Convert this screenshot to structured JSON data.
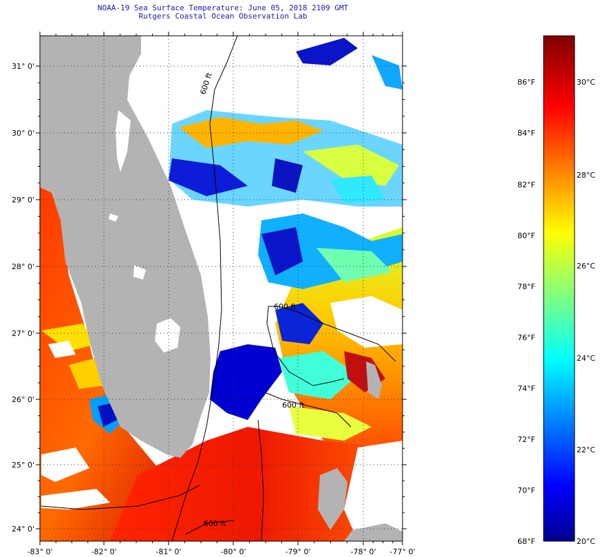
{
  "title": {
    "line1": "NOAA-19 Sea Surface Temperature:  June 05, 2018 2109 GMT",
    "line2": "Rutgers Coastal Ocean Observation Lab"
  },
  "lat_ticks": [
    "31° 0'",
    "30° 0'",
    "29° 0'",
    "28° 0'",
    "27° 0'",
    "26° 0'",
    "25° 0'",
    "24° 0'"
  ],
  "lon_ticks": [
    "-83° 0'",
    "-82° 0'",
    "-81° 0'",
    "-80° 0'",
    "-79° 0'",
    "-78° 0'",
    "-77° 0'"
  ],
  "contour_labels": [
    "600 ft",
    "600 ft",
    "600 ft",
    "600 ft"
  ],
  "colorbar": {
    "fahrenheit": [
      "86°F",
      "84°F",
      "82°F",
      "80°F",
      "78°F",
      "76°F",
      "74°F",
      "72°F",
      "70°F",
      "68°F"
    ],
    "celsius": [
      "30°C",
      "28°C",
      "26°C",
      "24°C",
      "22°C",
      "20°C"
    ],
    "range_c": [
      20,
      31
    ]
  },
  "colors": {
    "land": "#b3b3b3",
    "cloud": "#ffffff",
    "title": "#1a1aa8"
  }
}
